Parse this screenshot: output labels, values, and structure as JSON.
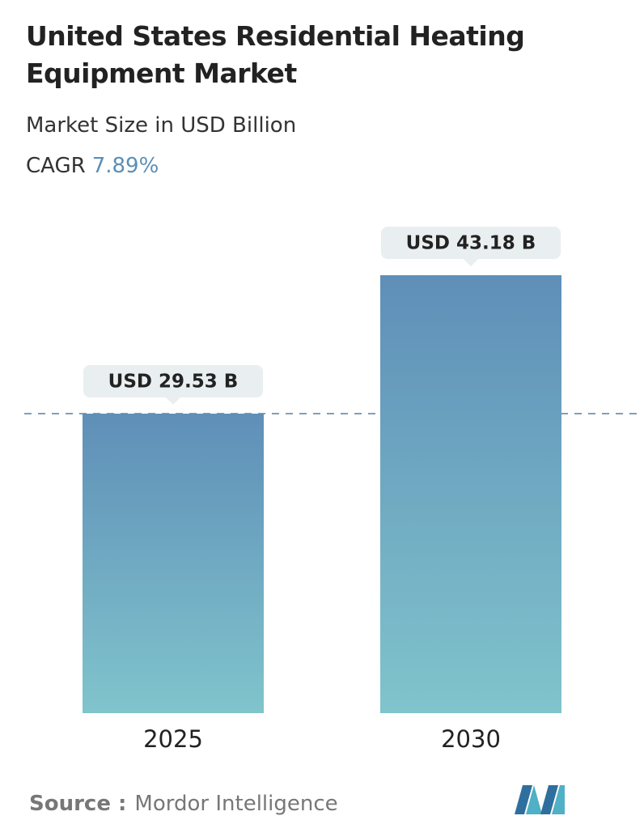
{
  "chart_data": {
    "type": "bar",
    "title": "United States Residential Heating Equipment Market",
    "subtitle": "Market Size in USD Billion",
    "cagr_label": "CAGR",
    "cagr_value": "7.89%",
    "categories": [
      "2025",
      "2030"
    ],
    "values": [
      29.53,
      43.18
    ],
    "value_labels": [
      "USD 29.53 B",
      "USD 43.18 B"
    ],
    "colors": [
      "#5f8fb8",
      "#80c4cc"
    ],
    "source_label": "Source :",
    "source": "Mordor Intelligence"
  }
}
